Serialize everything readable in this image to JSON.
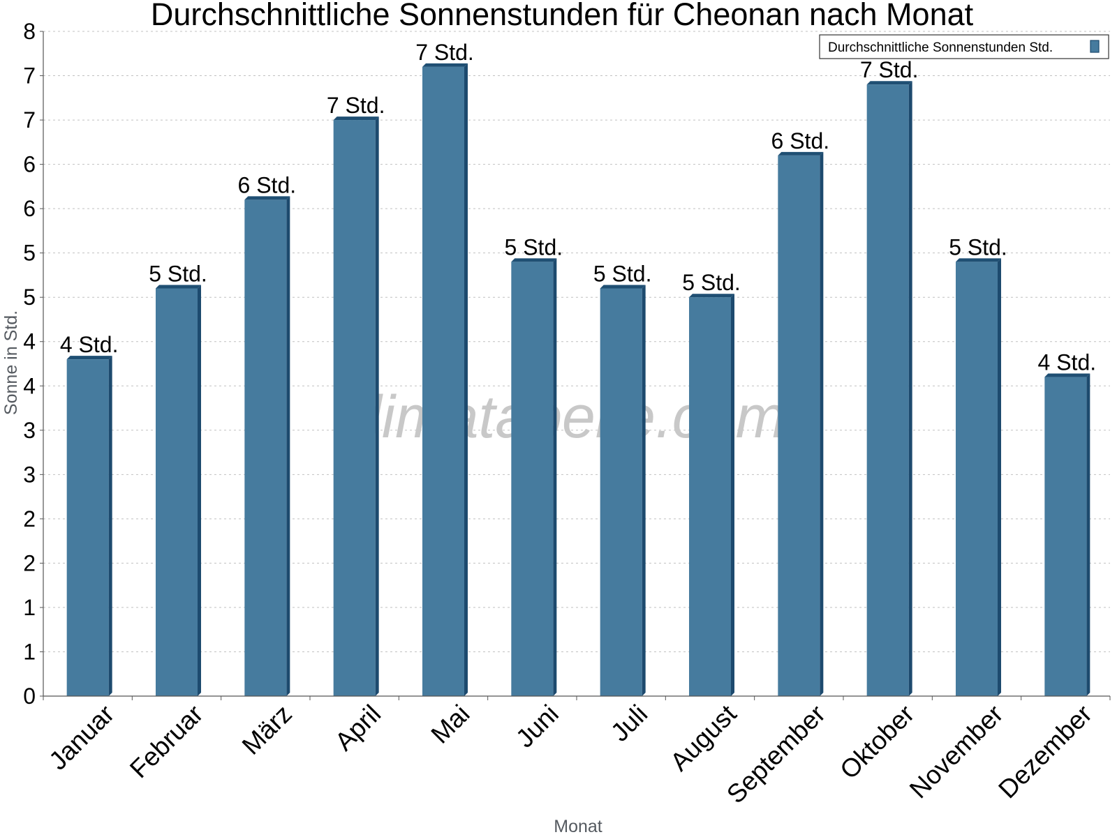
{
  "chart_data": {
    "type": "bar",
    "title": "Durchschnittliche Sonnenstunden für Cheonan nach Monat",
    "xlabel": "Monat",
    "ylabel": "Sonne in Std.",
    "categories": [
      "Januar",
      "Februar",
      "März",
      "April",
      "Mai",
      "Juni",
      "Juli",
      "August",
      "September",
      "Oktober",
      "November",
      "Dezember"
    ],
    "series": [
      {
        "name": "Durchschnittliche Sonnenstunden Std.",
        "values": [
          3.8,
          4.6,
          5.6,
          6.5,
          7.1,
          4.9,
          4.6,
          4.5,
          6.1,
          6.9,
          4.9,
          3.6
        ],
        "labels": [
          "4 Std.",
          "5 Std.",
          "6 Std.",
          "7 Std.",
          "7 Std.",
          "5 Std.",
          "5 Std.",
          "5 Std.",
          "6 Std.",
          "7 Std.",
          "5 Std.",
          "4 Std."
        ]
      }
    ],
    "ylim": [
      0,
      7.5
    ],
    "yticks": [
      0,
      0.5,
      1,
      1.5,
      2,
      2.5,
      3,
      3.5,
      4,
      4.5,
      5,
      5.5,
      6,
      6.5,
      7,
      7.5
    ],
    "ytick_labels": [
      "0",
      "1",
      "1",
      "2",
      "2",
      "3",
      "3",
      "4",
      "4",
      "5",
      "5",
      "6",
      "6",
      "7",
      "7",
      "8"
    ],
    "grid": true,
    "legend_position": "top-right",
    "watermark": "klimatabelle.com",
    "colors": {
      "bar": "#467b9e",
      "bar_side": "#1d4a6e",
      "bar_top": "#1f4f73"
    }
  }
}
